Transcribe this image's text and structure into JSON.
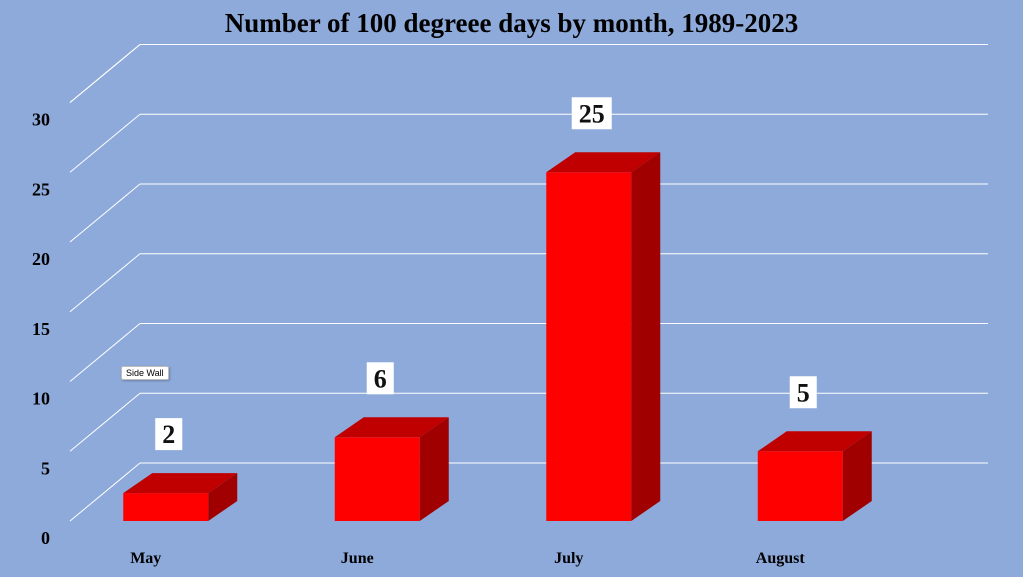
{
  "chart_data": {
    "type": "bar",
    "title": "Number of 100 degreee days by month, 1989-2023",
    "categories": [
      "May",
      "June",
      "July",
      "August"
    ],
    "values": [
      2,
      6,
      25,
      5
    ],
    "ylim": [
      0,
      30
    ],
    "yticks": [
      "0",
      "5",
      "10",
      "15",
      "20",
      "25",
      "30"
    ],
    "grid": true,
    "three_d": true,
    "data_labels": [
      "2",
      "6",
      "25",
      "5"
    ],
    "colors": {
      "background": "#8eaadb",
      "bar_front": "#ff0000",
      "bar_top": "#c00000",
      "bar_side": "#a00000",
      "gridline": "#ffffff"
    }
  },
  "tooltip": {
    "text": "Side Wall"
  }
}
